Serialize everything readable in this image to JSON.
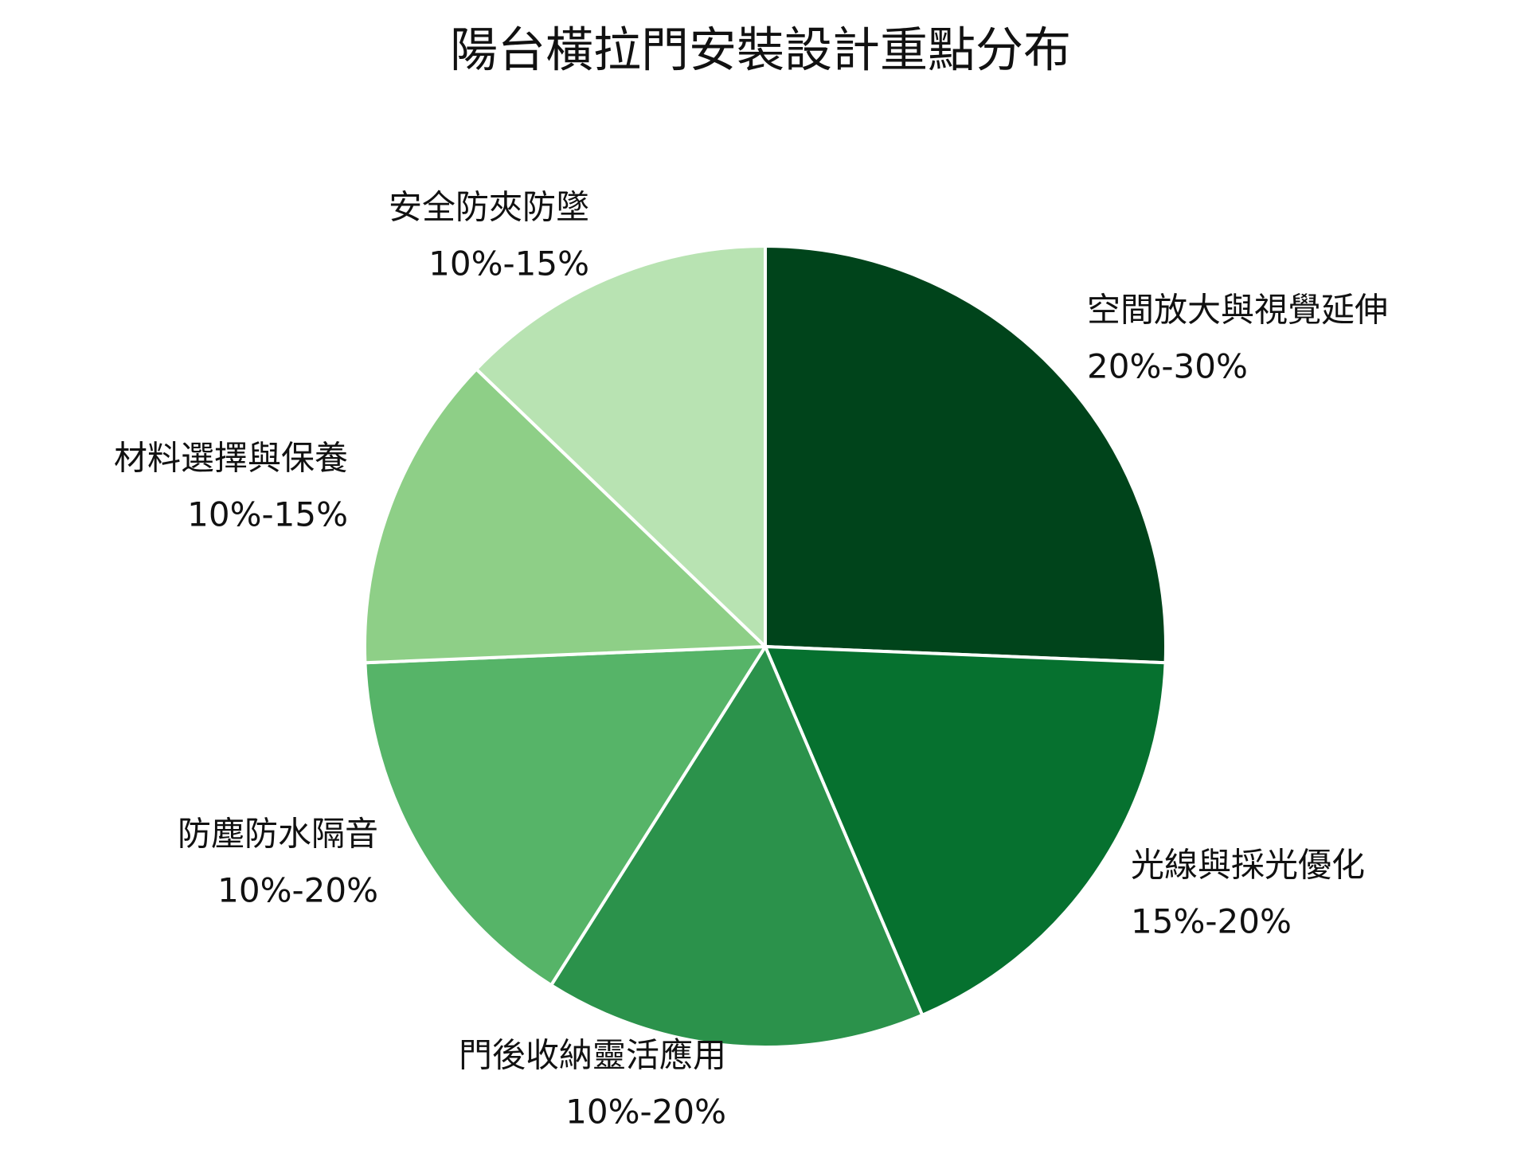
{
  "chart_data": {
    "type": "pie",
    "title": "陽台橫拉門安裝設計重點分布",
    "categories": [
      "空間放大與視覺延伸",
      "光線與採光優化",
      "門後收納靈活應用",
      "防塵防水隔音",
      "材料選擇與保養",
      "安全防夾防墜"
    ],
    "values": [
      25,
      17.5,
      15,
      15,
      12.5,
      12.5
    ],
    "value_labels": [
      "20%-30%",
      "15%-20%",
      "10%-20%",
      "10%-20%",
      "10%-15%",
      "10%-15%"
    ],
    "colors": [
      "#00441b",
      "#06712f",
      "#2b924b",
      "#56b468",
      "#8ecf87",
      "#b8e3b2"
    ]
  }
}
